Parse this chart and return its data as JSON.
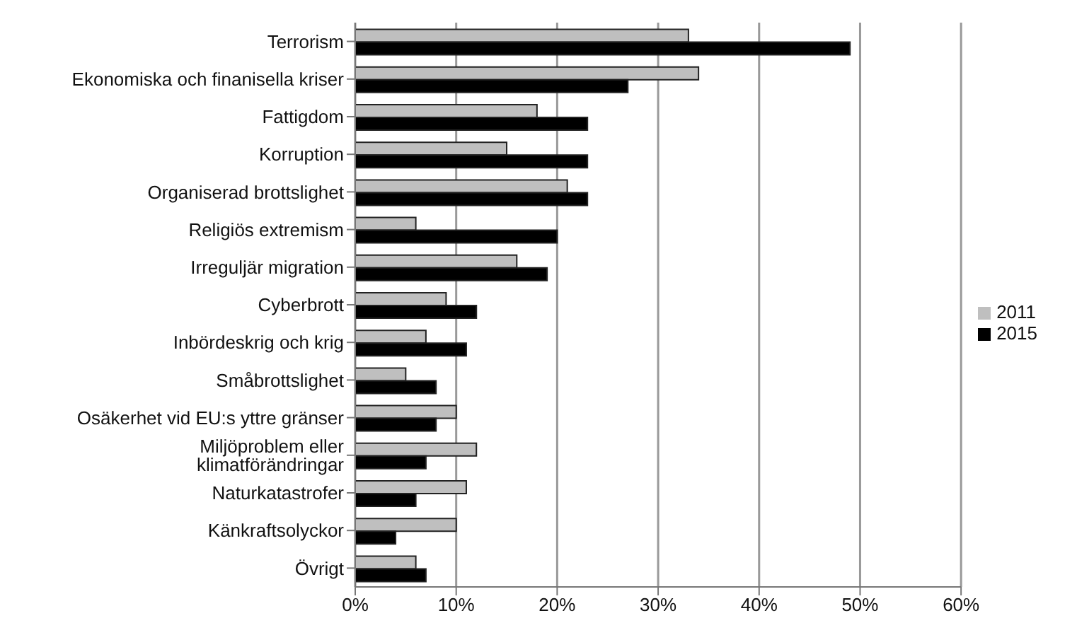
{
  "chart_data": {
    "type": "bar",
    "orientation": "horizontal",
    "categories": [
      "Terrorism",
      "Ekonomiska och finanisella kriser",
      "Fattigdom",
      "Korruption",
      "Organiserad brottslighet",
      "Religiös extremism",
      "Irreguljär migration",
      "Cyberbrott",
      "Inbördeskrig och krig",
      "Småbrottslighet",
      "Osäkerhet vid EU:s yttre gränser",
      "Miljöproblem eller klimatförändringar",
      "Naturkatastrofer",
      "Känkraftsolyckor",
      "Övrigt"
    ],
    "series": [
      {
        "name": "2011",
        "color": "#bfbfbf",
        "values": [
          33,
          34,
          18,
          15,
          21,
          6,
          16,
          9,
          7,
          5,
          10,
          12,
          11,
          10,
          6
        ]
      },
      {
        "name": "2015",
        "color": "#000000",
        "values": [
          49,
          27,
          23,
          23,
          23,
          20,
          19,
          12,
          11,
          8,
          8,
          7,
          6,
          4,
          7
        ]
      }
    ],
    "xlim": [
      0,
      60
    ],
    "xticks": [
      {
        "value": 0,
        "label": "0%"
      },
      {
        "value": 10,
        "label": "10%"
      },
      {
        "value": 20,
        "label": "20%"
      },
      {
        "value": 30,
        "label": "30%"
      },
      {
        "value": 40,
        "label": "40%"
      },
      {
        "value": 50,
        "label": "50%"
      },
      {
        "value": 60,
        "label": "60%"
      }
    ],
    "grid": "x",
    "legend": "right"
  }
}
